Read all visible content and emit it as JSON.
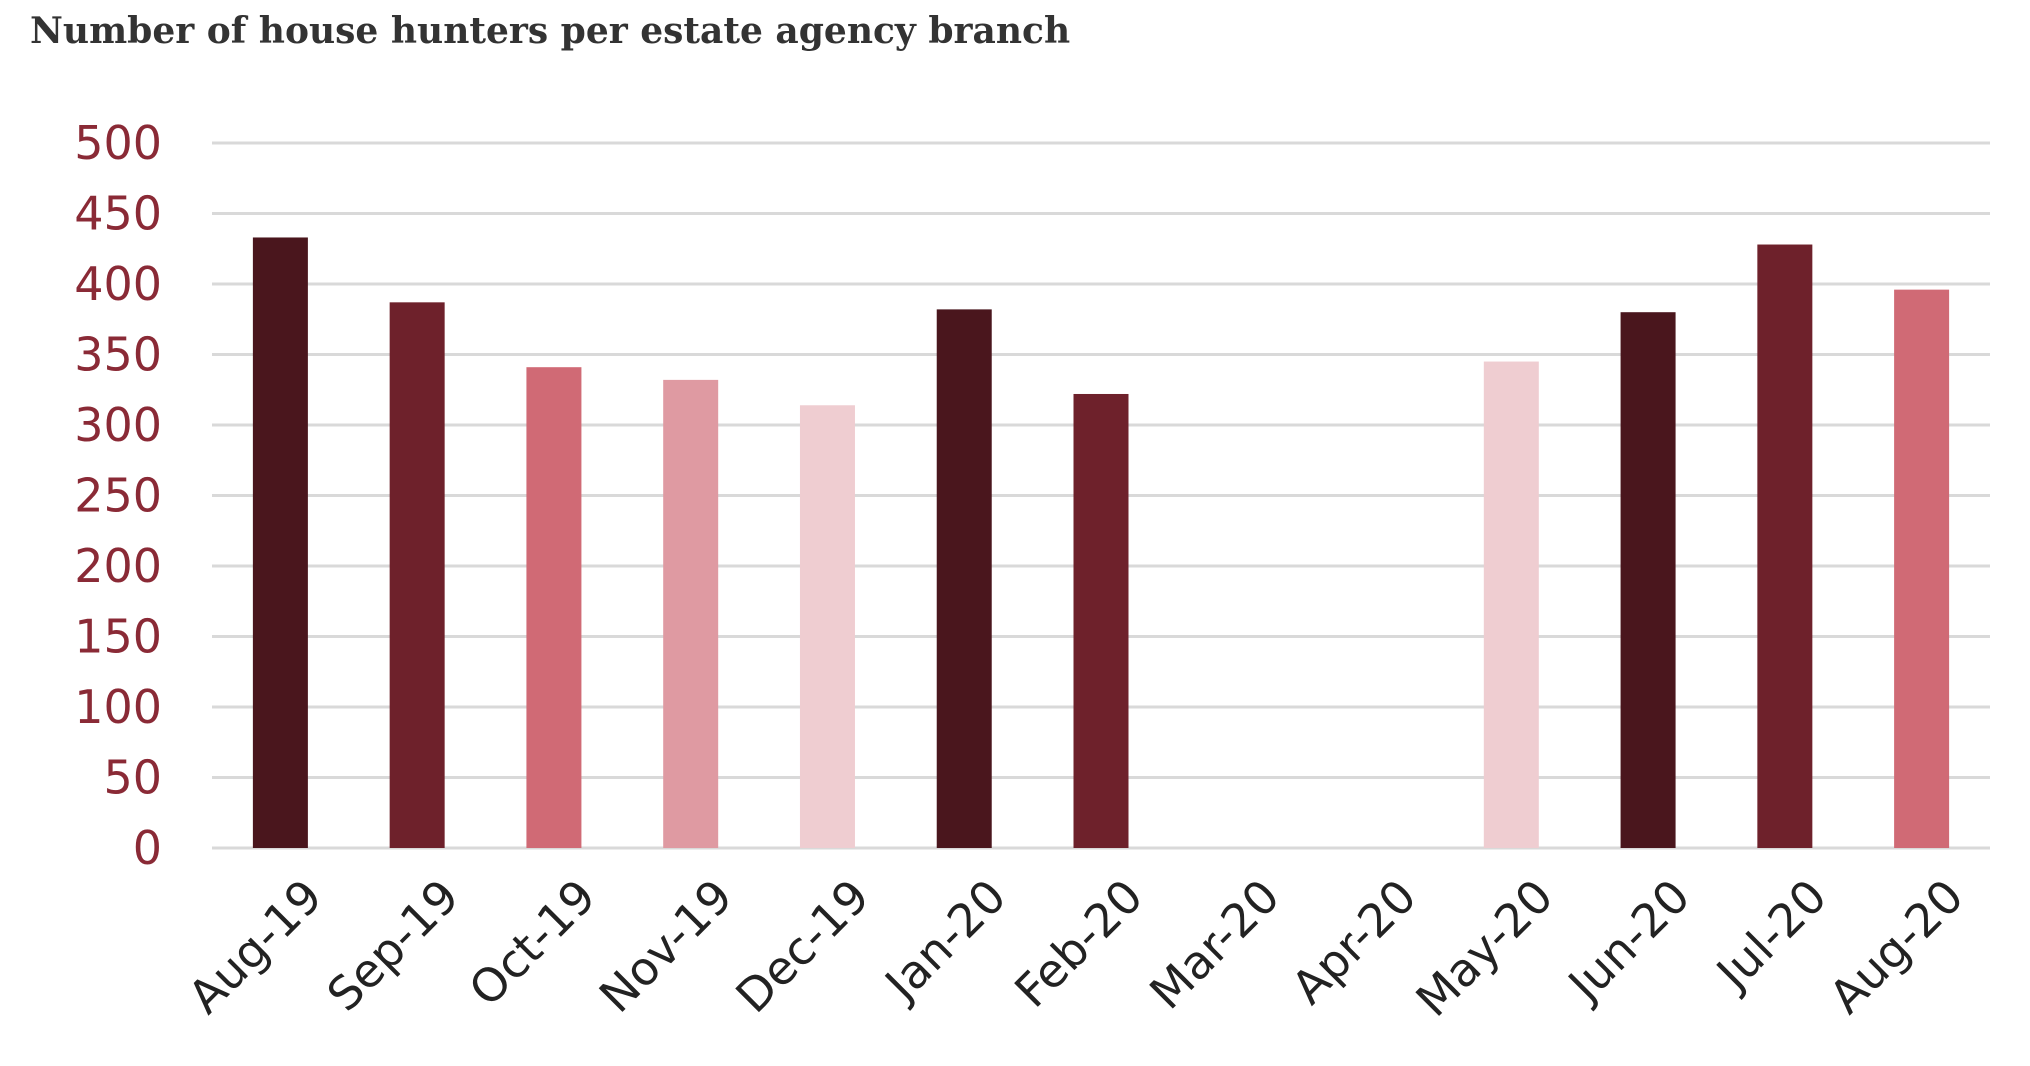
{
  "chart_data": {
    "type": "bar",
    "title": "Number of house hunters per estate agency branch",
    "xlabel": "",
    "ylabel": "",
    "categories": [
      "Aug-19",
      "Sep-19",
      "Oct-19",
      "Nov-19",
      "Dec-19",
      "Jan-20",
      "Feb-20",
      "Mar-20",
      "Apr-20",
      "May-20",
      "Jun-20",
      "Jul-20",
      "Aug-20"
    ],
    "values": [
      433,
      387,
      341,
      332,
      314,
      382,
      322,
      null,
      null,
      345,
      380,
      428,
      396
    ],
    "bar_colors": [
      "#4a161d",
      "#6e212b",
      "#d06a75",
      "#df9aa2",
      "#efcdd1",
      "#4a161d",
      "#6e212b",
      "#4a161d",
      "#6e212b",
      "#efcdd1",
      "#4a161d",
      "#6e212b",
      "#d06a75"
    ],
    "ylim": [
      0,
      500
    ],
    "yticks": [
      "0",
      "50",
      "100",
      "150",
      "200",
      "250",
      "300",
      "350",
      "400",
      "450",
      "500"
    ],
    "grid": true,
    "legend": "none"
  }
}
